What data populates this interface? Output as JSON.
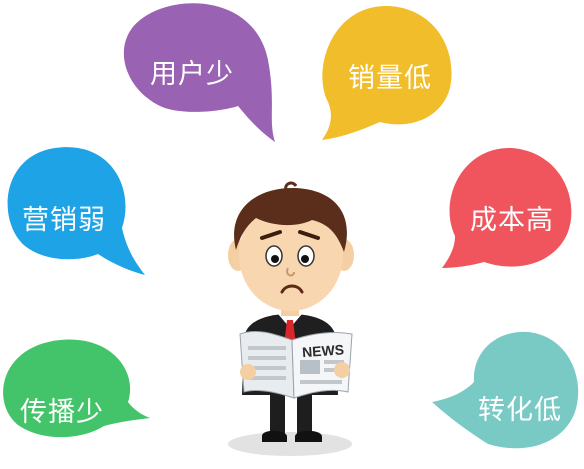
{
  "bubbles": [
    {
      "id": "b1",
      "label": "用户少",
      "color": "#9a62b3"
    },
    {
      "id": "b2",
      "label": "销量低",
      "color": "#f2bd2a"
    },
    {
      "id": "b3",
      "label": "营销弱",
      "color": "#1ea3e6"
    },
    {
      "id": "b4",
      "label": "成本高",
      "color": "#f0545c"
    },
    {
      "id": "b5",
      "label": "传播少",
      "color": "#44c46a"
    },
    {
      "id": "b6",
      "label": "转化低",
      "color": "#79cac4"
    }
  ],
  "newspaper": {
    "headline": "NEWS"
  }
}
